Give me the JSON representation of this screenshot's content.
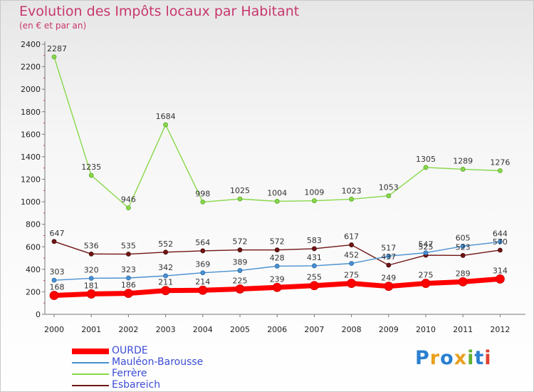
{
  "header": {
    "title": "Evolution des Impôts locaux par Habitant",
    "subtitle": "(en € et par an)"
  },
  "brand": {
    "logo_text": "Proxiti"
  },
  "chart_data": {
    "type": "line",
    "categories": [
      "2000",
      "2001",
      "2002",
      "2003",
      "2004",
      "2005",
      "2006",
      "2007",
      "2008",
      "2009",
      "2010",
      "2011",
      "2012"
    ],
    "ylim": [
      0,
      2400
    ],
    "yticks": [
      0,
      200,
      400,
      600,
      800,
      1000,
      1200,
      1400,
      1600,
      1800,
      2000,
      2200,
      2400
    ],
    "grid": false,
    "legend": "bottom-left",
    "series": [
      {
        "name": "OURDE",
        "color": "#ff0000",
        "values": [
          168,
          181,
          186,
          211,
          214,
          225,
          239,
          255,
          275,
          249,
          275,
          289,
          314
        ]
      },
      {
        "name": "Mauléon-Barousse",
        "color": "#4a90d0",
        "values": [
          303,
          320,
          323,
          342,
          369,
          389,
          428,
          431,
          452,
          517,
          547,
          605,
          644
        ]
      },
      {
        "name": "Ferrère",
        "color": "#88d84a",
        "values": [
          2287,
          1235,
          946,
          1684,
          998,
          1025,
          1004,
          1009,
          1023,
          1053,
          1305,
          1289,
          1276
        ]
      },
      {
        "name": "Esbareich",
        "color": "#701414",
        "values": [
          647,
          536,
          535,
          552,
          564,
          572,
          572,
          583,
          617,
          437,
          525,
          523,
          570
        ]
      }
    ]
  }
}
